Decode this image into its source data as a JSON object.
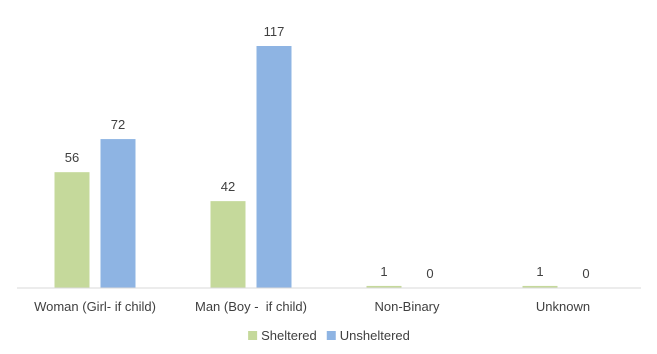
{
  "chart_data": {
    "type": "bar",
    "categories": [
      "Woman (Girl- if child)",
      "Man (Boy -  if child)",
      "Non-Binary",
      "Unknown"
    ],
    "series": [
      {
        "name": "Sheltered",
        "values": [
          56,
          42,
          1,
          1
        ],
        "color": "#c5d99b"
      },
      {
        "name": "Unsheltered",
        "values": [
          72,
          117,
          0,
          0
        ],
        "color": "#8eb4e3"
      }
    ],
    "ylim": [
      0,
      120
    ],
    "grid": false,
    "legend_position": "bottom",
    "axis_color": "#d9d9d9"
  }
}
